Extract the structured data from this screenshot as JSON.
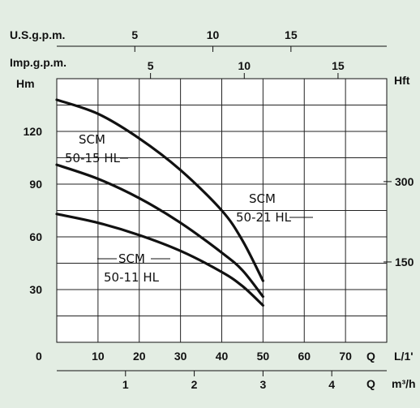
{
  "chart_data": {
    "type": "line",
    "x": {
      "label_left": "0",
      "unit_q": "Q",
      "unit": "L/1'",
      "ticks": [
        10,
        20,
        30,
        40,
        50,
        60,
        70
      ],
      "range": [
        0,
        80
      ]
    },
    "x_m3h": {
      "unit_q": "Q",
      "unit": "m³/h",
      "ticks": [
        1,
        2,
        3,
        4
      ],
      "range": [
        0,
        4.8
      ]
    },
    "x_us": {
      "label": "U.S.g.p.m.",
      "ticks": [
        5,
        10,
        15
      ]
    },
    "x_imp": {
      "label": "Imp.g.p.m.",
      "ticks": [
        5,
        10,
        15
      ]
    },
    "y": {
      "label": "Hm",
      "ticks": [
        30,
        60,
        90,
        120
      ],
      "range": [
        0,
        150
      ]
    },
    "y_right": {
      "label": "Hft",
      "ticks": [
        150,
        300
      ]
    },
    "grid": true,
    "series": [
      {
        "name": "SCM 50-21 HL",
        "label_lines": [
          "SCM",
          "50-21 HL"
        ],
        "x": [
          0,
          10,
          20,
          30,
          40,
          45,
          50
        ],
        "y": [
          138,
          130,
          116,
          98,
          75,
          58,
          35
        ]
      },
      {
        "name": "SCM 50-15 HL",
        "label_lines": [
          "SCM",
          "50-15 HL"
        ],
        "x": [
          0,
          10,
          20,
          30,
          40,
          45,
          50
        ],
        "y": [
          101,
          93,
          82,
          68,
          51,
          41,
          26
        ]
      },
      {
        "name": "SCM 50-11 HL",
        "label_lines": [
          "SCM",
          "50-11 HL"
        ],
        "x": [
          0,
          10,
          20,
          30,
          40,
          45,
          50
        ],
        "y": [
          73,
          68,
          61,
          52,
          40,
          32,
          21
        ]
      }
    ]
  }
}
